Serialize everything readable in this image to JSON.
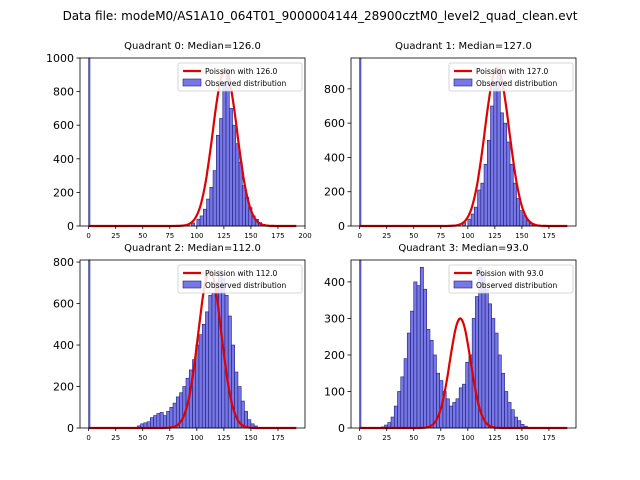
{
  "figure": {
    "suptitle": "Data file: modeM0/AS1A10_064T01_9000004144_28900cztM0_level2_quad_clean.evt"
  },
  "colors": {
    "bar_fill": "#7777e6",
    "bar_edge": "#1e1e7a",
    "line": "#e00000"
  },
  "chart_data": [
    {
      "type": "bar",
      "title": "Quadrant 0: Median=126.0",
      "poisson_mean": 126.0,
      "legend_line": "Poission with 126.0",
      "legend_bar": "Observed distribution",
      "legend_position": "upper-right",
      "xlim": [
        -8,
        200
      ],
      "ylim": [
        0,
        1000
      ],
      "xticks": [
        0,
        25,
        50,
        75,
        100,
        125,
        150,
        175,
        200
      ],
      "yticks": [
        0,
        200,
        400,
        600,
        800,
        1000
      ],
      "bins": {
        "x": [
          0,
          80,
          85,
          90,
          95,
          100,
          103,
          106,
          109,
          112,
          115,
          118,
          121,
          124,
          127,
          130,
          133,
          136,
          139,
          142,
          145,
          148,
          151,
          154,
          157,
          160,
          163,
          166
        ],
        "counts": [
          1000,
          3,
          6,
          10,
          18,
          40,
          60,
          100,
          160,
          230,
          330,
          540,
          640,
          850,
          930,
          700,
          600,
          490,
          380,
          240,
          170,
          110,
          60,
          40,
          20,
          10,
          5,
          3
        ]
      }
    },
    {
      "type": "bar",
      "title": "Quadrant 1: Median=127.0",
      "poisson_mean": 127.0,
      "legend_line": "Poission with 127.0",
      "legend_bar": "Observed distribution",
      "legend_position": "upper-right",
      "xlim": [
        -8,
        200
      ],
      "ylim": [
        0,
        980
      ],
      "xticks": [
        0,
        25,
        50,
        75,
        100,
        125,
        150,
        175
      ],
      "yticks": [
        0,
        200,
        400,
        600,
        800
      ],
      "bins": {
        "x": [
          0,
          80,
          85,
          90,
          95,
          100,
          103,
          106,
          109,
          112,
          115,
          118,
          121,
          124,
          127,
          130,
          133,
          136,
          139,
          142,
          145,
          148,
          151,
          154,
          157,
          160,
          163,
          166
        ],
        "counts": [
          980,
          3,
          6,
          10,
          20,
          40,
          70,
          110,
          210,
          250,
          360,
          500,
          700,
          840,
          920,
          660,
          600,
          490,
          360,
          250,
          160,
          90,
          60,
          30,
          15,
          8,
          4,
          2
        ]
      }
    },
    {
      "type": "bar",
      "title": "Quadrant 2: Median=112.0",
      "poisson_mean": 112.0,
      "legend_line": "Poission with 112.0",
      "legend_bar": "Observed distribution",
      "legend_position": "upper-right",
      "xlim": [
        -8,
        200
      ],
      "ylim": [
        0,
        810
      ],
      "xticks": [
        0,
        25,
        50,
        75,
        100,
        125,
        150,
        175
      ],
      "yticks": [
        0,
        200,
        400,
        600,
        800
      ],
      "bins": {
        "x": [
          0,
          45,
          48,
          51,
          54,
          57,
          60,
          63,
          66,
          69,
          72,
          75,
          78,
          81,
          84,
          87,
          90,
          93,
          96,
          99,
          102,
          105,
          108,
          111,
          114,
          117,
          120,
          123,
          126,
          129,
          132,
          135,
          138,
          141,
          144,
          147,
          150,
          153
        ],
        "counts": [
          810,
          10,
          20,
          25,
          30,
          50,
          60,
          70,
          75,
          60,
          80,
          100,
          120,
          150,
          170,
          200,
          240,
          280,
          330,
          400,
          450,
          500,
          560,
          640,
          650,
          700,
          760,
          720,
          640,
          540,
          400,
          270,
          200,
          130,
          80,
          40,
          20,
          10
        ]
      }
    },
    {
      "type": "bar",
      "title": "Quadrant 3: Median=93.0",
      "poisson_mean": 93.0,
      "legend_line": "Poission with 93.0",
      "legend_bar": "Observed distribution",
      "legend_position": "upper-right",
      "xlim": [
        -8,
        200
      ],
      "ylim": [
        0,
        460
      ],
      "xticks": [
        0,
        25,
        50,
        75,
        100,
        125,
        150,
        175
      ],
      "yticks": [
        0,
        100,
        200,
        300,
        400
      ],
      "bins": {
        "x": [
          0,
          20,
          23,
          26,
          29,
          32,
          35,
          38,
          41,
          44,
          47,
          50,
          53,
          56,
          59,
          62,
          65,
          68,
          71,
          74,
          77,
          80,
          83,
          86,
          89,
          92,
          95,
          98,
          101,
          104,
          107,
          110,
          113,
          116,
          119,
          122,
          125,
          128,
          131,
          134,
          137,
          140,
          143,
          146,
          149,
          152,
          155
        ],
        "counts": [
          460,
          3,
          8,
          15,
          30,
          60,
          100,
          140,
          190,
          260,
          320,
          400,
          390,
          440,
          380,
          270,
          240,
          200,
          150,
          130,
          100,
          80,
          60,
          70,
          80,
          110,
          120,
          180,
          200,
          300,
          360,
          440,
          420,
          380,
          340,
          300,
          260,
          200,
          150,
          100,
          70,
          50,
          30,
          20,
          10,
          5,
          2
        ]
      }
    }
  ]
}
